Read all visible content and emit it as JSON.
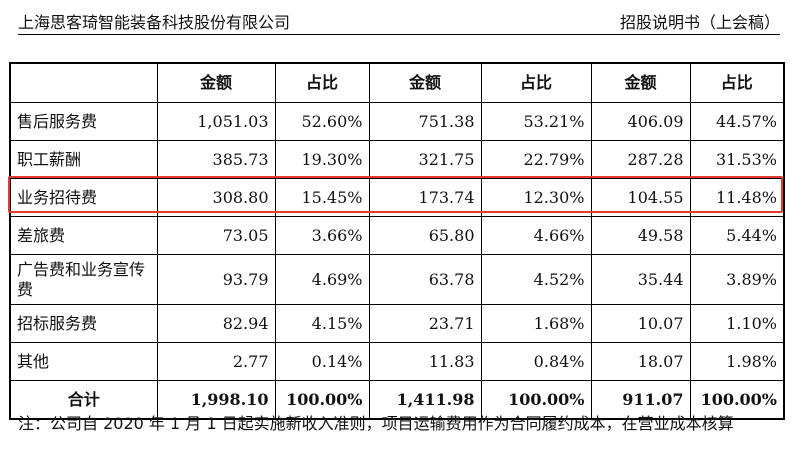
{
  "header": {
    "company": "上海思客琦智能装备科技股份有限公司",
    "doc": "招股说明书（上会稿）"
  },
  "table": {
    "columns": [
      "",
      "金额",
      "占比",
      "金额",
      "占比",
      "金额",
      "占比"
    ],
    "rows": [
      {
        "label": "售后服务费",
        "cells": [
          "1,051.03",
          "52.60%",
          "751.38",
          "53.21%",
          "406.09",
          "44.57%"
        ]
      },
      {
        "label": "职工薪酬",
        "cells": [
          "385.73",
          "19.30%",
          "321.75",
          "22.79%",
          "287.28",
          "31.53%"
        ]
      },
      {
        "label": "业务招待费",
        "cells": [
          "308.80",
          "15.45%",
          "173.74",
          "12.30%",
          "104.55",
          "11.48%"
        ]
      },
      {
        "label": "差旅费",
        "cells": [
          "73.05",
          "3.66%",
          "65.80",
          "4.66%",
          "49.58",
          "5.44%"
        ]
      },
      {
        "label": "广告费和业务宣传费",
        "cells": [
          "93.79",
          "4.69%",
          "63.78",
          "4.52%",
          "35.44",
          "3.89%"
        ]
      },
      {
        "label": "招标服务费",
        "cells": [
          "82.94",
          "4.15%",
          "23.71",
          "1.68%",
          "10.07",
          "1.10%"
        ]
      },
      {
        "label": "其他",
        "cells": [
          "2.77",
          "0.14%",
          "11.83",
          "0.84%",
          "18.07",
          "1.98%"
        ]
      }
    ],
    "total": {
      "label": "合计",
      "cells": [
        "1,998.10",
        "100.00%",
        "1,411.98",
        "100.00%",
        "911.07",
        "100.00%"
      ]
    }
  },
  "highlight_color": "#e23b2b",
  "note": "注：公司自 2020 年 1 月 1 日起实施新收入准则，项目运输费用作为合同履约成本，在营业成本核算"
}
